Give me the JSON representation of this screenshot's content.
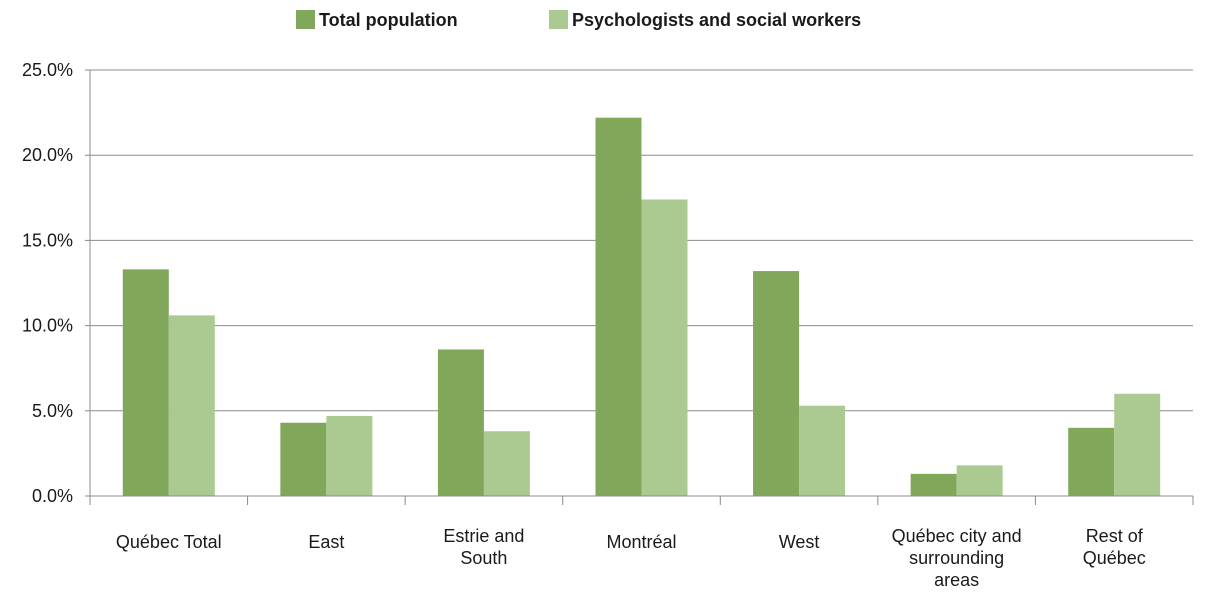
{
  "chart_data": {
    "type": "bar",
    "categories": [
      [
        "Québec Total"
      ],
      [
        "East"
      ],
      [
        "Estrie and",
        "South"
      ],
      [
        "Montréal"
      ],
      [
        "West"
      ],
      [
        "Québec city and",
        "surrounding",
        "areas"
      ],
      [
        "Rest of",
        "Québec"
      ]
    ],
    "series": [
      {
        "name": "Total population",
        "color": "#80a75a",
        "values": [
          13.3,
          4.3,
          8.6,
          22.2,
          13.2,
          1.3,
          4.0
        ]
      },
      {
        "name": "Psychologists and social workers",
        "color": "#abca92",
        "values": [
          10.6,
          4.7,
          3.8,
          17.4,
          5.3,
          1.8,
          6.0
        ]
      }
    ],
    "ylim": [
      0,
      25
    ],
    "yticks": [
      "0.0%",
      "5.0%",
      "10.0%",
      "15.0%",
      "20.0%",
      "25.0%"
    ],
    "ytick_values": [
      0,
      5,
      10,
      15,
      20,
      25
    ],
    "grid": true,
    "legend_position": "top-center"
  }
}
